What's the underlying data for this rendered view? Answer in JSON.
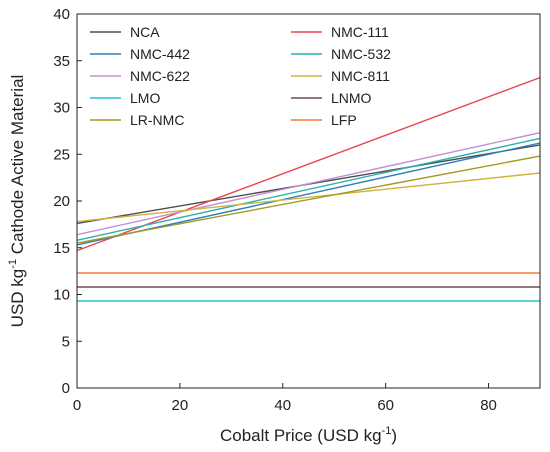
{
  "chart_data": {
    "type": "line",
    "title": "",
    "xlabel": "Cobalt Price (USD kg",
    "xlabel_sup": "-1",
    "xlabel_end": ")",
    "ylabel": "USD kg",
    "ylabel_sup": "-1",
    "ylabel_end": " Cathode Active Material",
    "xlim": [
      0,
      90
    ],
    "ylim": [
      0,
      40
    ],
    "xticks": [
      0,
      20,
      40,
      60,
      80
    ],
    "yticks": [
      0,
      5,
      10,
      15,
      20,
      25,
      30,
      35,
      40
    ],
    "grid": false,
    "legend_position": "top, two columns",
    "series": [
      {
        "name": "NCA",
        "color": "#4d4d4d",
        "x": [
          0,
          90
        ],
        "y": [
          17.6,
          26.0
        ]
      },
      {
        "name": "NMC-111",
        "color": "#e8474c",
        "x": [
          0,
          90
        ],
        "y": [
          14.7,
          33.2
        ]
      },
      {
        "name": "NMC-442",
        "color": "#2f7fb8",
        "x": [
          0,
          90
        ],
        "y": [
          15.3,
          26.2
        ]
      },
      {
        "name": "NMC-532",
        "color": "#2ab3a8",
        "x": [
          0,
          90
        ],
        "y": [
          15.8,
          26.7
        ]
      },
      {
        "name": "NMC-622",
        "color": "#c38fd6",
        "x": [
          0,
          90
        ],
        "y": [
          16.4,
          27.3
        ]
      },
      {
        "name": "NMC-811",
        "color": "#d4b13c",
        "x": [
          0,
          90
        ],
        "y": [
          17.8,
          23.0
        ]
      },
      {
        "name": "LMO",
        "color": "#21c4cf",
        "x": [
          0,
          90
        ],
        "y": [
          9.3,
          9.3
        ]
      },
      {
        "name": "LNMO",
        "color": "#6b4f4f",
        "x": [
          0,
          90
        ],
        "y": [
          10.8,
          10.8
        ]
      },
      {
        "name": "LR-NMC",
        "color": "#a39a1f",
        "x": [
          0,
          90
        ],
        "y": [
          15.5,
          24.8
        ]
      },
      {
        "name": "LFP",
        "color": "#f47c3c",
        "x": [
          0,
          90
        ],
        "y": [
          12.3,
          12.3
        ]
      }
    ]
  }
}
